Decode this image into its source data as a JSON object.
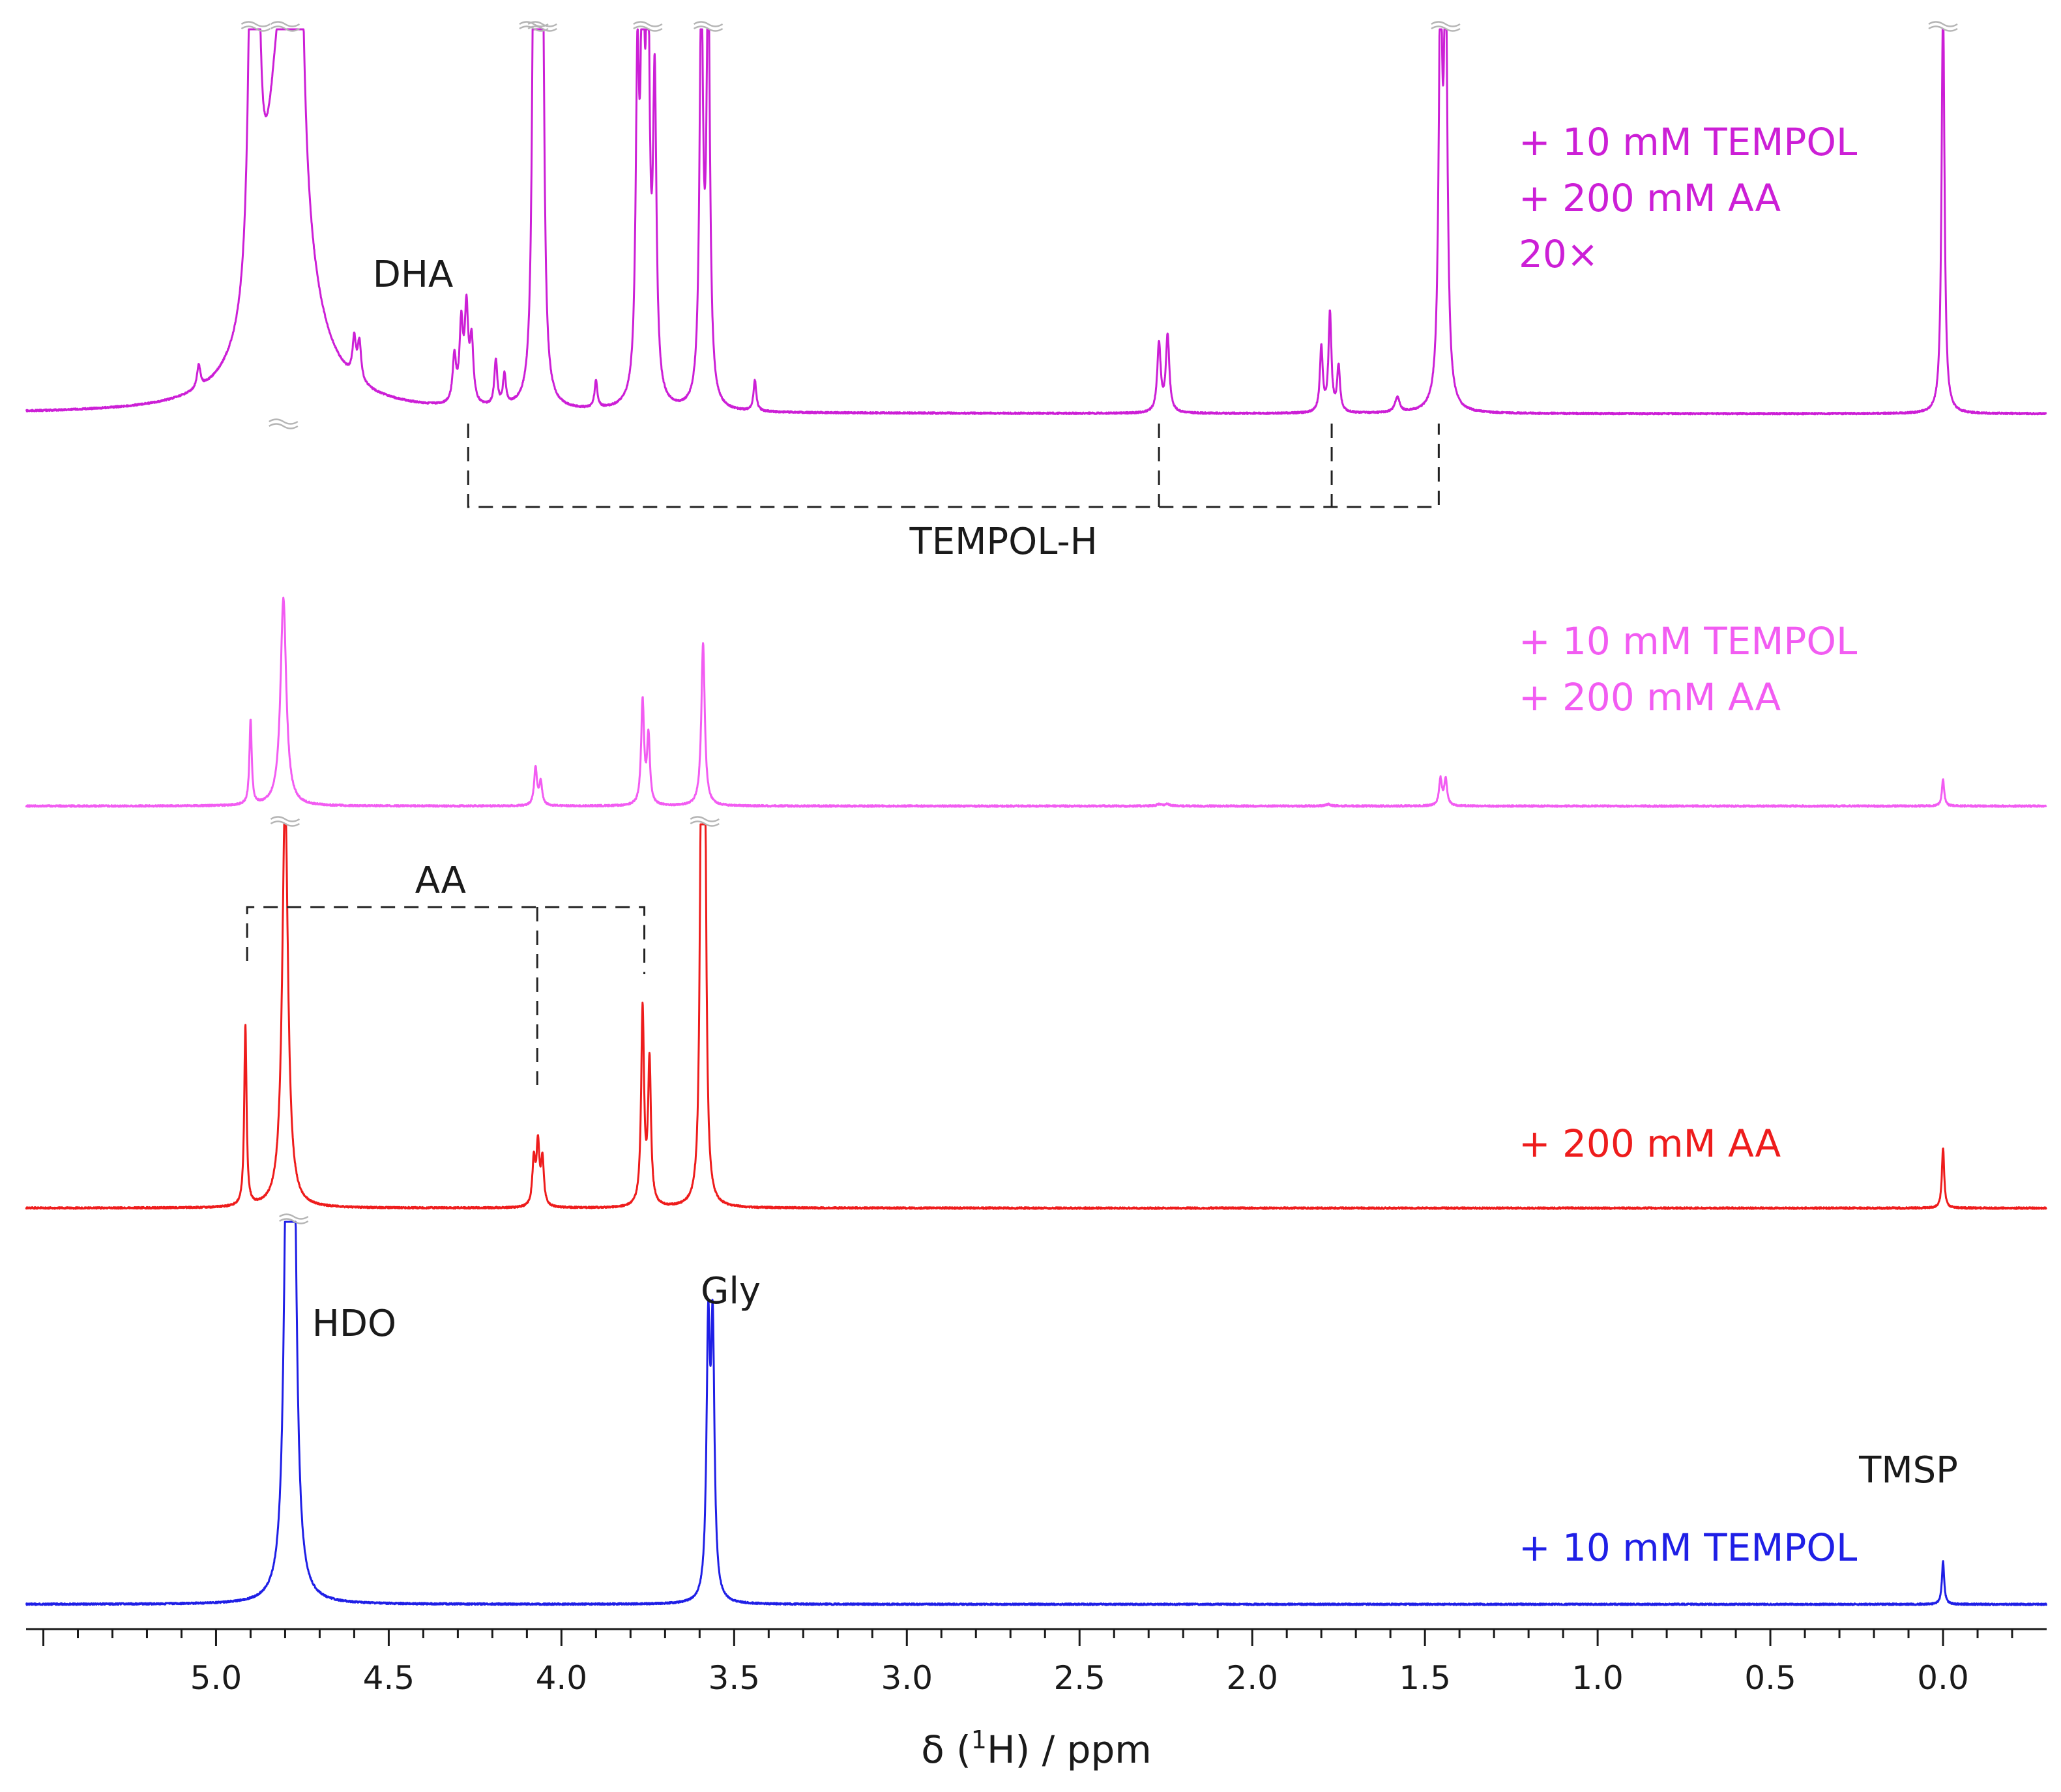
{
  "chart_data": {
    "type": "line",
    "title": "",
    "xlabel": "δ (¹H) / ppm",
    "xlabel_parts": {
      "prefix": "δ (",
      "sup": "1",
      "suffix": "H) / ppm"
    },
    "xlim": [
      5.55,
      -0.3
    ],
    "x_direction": "reversed",
    "grid": false,
    "xticks": [
      {
        "value": 5.0,
        "label": "5.0"
      },
      {
        "value": 4.5,
        "label": "4.5"
      },
      {
        "value": 4.0,
        "label": "4.0"
      },
      {
        "value": 3.5,
        "label": "3.5"
      },
      {
        "value": 3.0,
        "label": "3.0"
      },
      {
        "value": 2.5,
        "label": "2.5"
      },
      {
        "value": 2.0,
        "label": "2.0"
      },
      {
        "value": 1.5,
        "label": "1.5"
      },
      {
        "value": 1.0,
        "label": "1.0"
      },
      {
        "value": 0.5,
        "label": "0.5"
      },
      {
        "value": 0.0,
        "label": "0.0"
      }
    ],
    "series": [
      {
        "name": "+ 10 mM TEMPOL",
        "color": "#1f1fe6",
        "legend": [
          "+ 10 mM TEMPOL"
        ],
        "peaks": [
          {
            "ppm": 4.795,
            "height": 1.1,
            "width": 0.01,
            "truncated": true
          },
          {
            "ppm": 4.775,
            "height": 1.1,
            "width": 0.01,
            "truncated": true
          },
          {
            "ppm": 3.575,
            "height": 0.66,
            "width": 0.006
          },
          {
            "ppm": 3.562,
            "height": 0.66,
            "width": 0.006
          },
          {
            "ppm": 0.0,
            "height": 0.11,
            "width": 0.004
          }
        ]
      },
      {
        "name": "+ 200 mM AA",
        "color": "#ee1c1c",
        "legend": [
          "+ 200 mM AA"
        ],
        "peaks": [
          {
            "ppm": 4.915,
            "height": 0.48,
            "width": 0.004
          },
          {
            "ppm": 4.8,
            "height": 1.1,
            "width": 0.01,
            "truncated": true
          },
          {
            "ppm": 4.08,
            "height": 0.12,
            "width": 0.005
          },
          {
            "ppm": 4.068,
            "height": 0.16,
            "width": 0.005
          },
          {
            "ppm": 4.055,
            "height": 0.12,
            "width": 0.005
          },
          {
            "ppm": 3.765,
            "height": 0.52,
            "width": 0.005
          },
          {
            "ppm": 3.745,
            "height": 0.38,
            "width": 0.005
          },
          {
            "ppm": 3.595,
            "height": 1.1,
            "width": 0.005,
            "truncated": true
          },
          {
            "ppm": 3.585,
            "height": 1.1,
            "width": 0.005,
            "truncated": true
          },
          {
            "ppm": 0.0,
            "height": 0.16,
            "width": 0.004
          }
        ]
      },
      {
        "name": "+ 10 mM TEMPOL + 200 mM AA",
        "color": "#f25cf2",
        "legend": [
          "+ 10 mM TEMPOL",
          "+ 200 mM AA"
        ],
        "peaks": [
          {
            "ppm": 4.9,
            "height": 0.45,
            "width": 0.004
          },
          {
            "ppm": 4.805,
            "height": 1.1,
            "width": 0.01,
            "truncated": true
          },
          {
            "ppm": 4.075,
            "height": 0.2,
            "width": 0.005
          },
          {
            "ppm": 4.06,
            "height": 0.12,
            "width": 0.005
          },
          {
            "ppm": 3.765,
            "height": 0.55,
            "width": 0.005
          },
          {
            "ppm": 3.748,
            "height": 0.36,
            "width": 0.005
          },
          {
            "ppm": 3.59,
            "height": 0.86,
            "width": 0.006
          },
          {
            "ppm": 2.27,
            "height": 0.01,
            "width": 0.008
          },
          {
            "ppm": 2.245,
            "height": 0.01,
            "width": 0.008
          },
          {
            "ppm": 1.78,
            "height": 0.01,
            "width": 0.008
          },
          {
            "ppm": 1.455,
            "height": 0.14,
            "width": 0.005
          },
          {
            "ppm": 1.44,
            "height": 0.14,
            "width": 0.005
          },
          {
            "ppm": 0.0,
            "height": 0.14,
            "width": 0.004
          }
        ]
      },
      {
        "name": "+ 10 mM TEMPOL + 200 mM AA 20×",
        "color": "#cc1fd6",
        "legend": [
          "+ 10 mM TEMPOL",
          "+ 200 mM AA",
          "20×"
        ],
        "peaks": [
          {
            "ppm": 5.05,
            "height": 0.06,
            "width": 0.006
          },
          {
            "ppm": 4.895,
            "height": 1.1,
            "width": 0.01,
            "truncated": true
          },
          {
            "ppm": 4.885,
            "height": 1.1,
            "width": 0.01,
            "truncated": true
          },
          {
            "ppm": 4.8,
            "height": 1.1,
            "width": 0.06,
            "truncated": true
          },
          {
            "ppm": 4.755,
            "height": 0.6,
            "width": 0.012
          },
          {
            "ppm": 4.6,
            "height": 0.1,
            "width": 0.006
          },
          {
            "ppm": 4.585,
            "height": 0.1,
            "width": 0.006
          },
          {
            "ppm": 4.31,
            "height": 0.12,
            "width": 0.006
          },
          {
            "ppm": 4.29,
            "height": 0.2,
            "width": 0.006
          },
          {
            "ppm": 4.275,
            "height": 0.24,
            "width": 0.006
          },
          {
            "ppm": 4.26,
            "height": 0.16,
            "width": 0.006
          },
          {
            "ppm": 4.19,
            "height": 0.12,
            "width": 0.005
          },
          {
            "ppm": 4.165,
            "height": 0.08,
            "width": 0.005
          },
          {
            "ppm": 4.08,
            "height": 1.1,
            "width": 0.006,
            "truncated": true
          },
          {
            "ppm": 4.068,
            "height": 1.1,
            "width": 0.006,
            "truncated": true
          },
          {
            "ppm": 4.055,
            "height": 1.1,
            "width": 0.006,
            "truncated": true
          },
          {
            "ppm": 3.9,
            "height": 0.07,
            "width": 0.005
          },
          {
            "ppm": 3.78,
            "height": 0.8,
            "width": 0.006
          },
          {
            "ppm": 3.765,
            "height": 1.1,
            "width": 0.006,
            "truncated": true
          },
          {
            "ppm": 3.75,
            "height": 1.1,
            "width": 0.006,
            "truncated": true
          },
          {
            "ppm": 3.73,
            "height": 0.8,
            "width": 0.006
          },
          {
            "ppm": 3.595,
            "height": 1.1,
            "width": 0.006,
            "truncated": true
          },
          {
            "ppm": 3.575,
            "height": 1.1,
            "width": 0.006,
            "truncated": true
          },
          {
            "ppm": 3.44,
            "height": 0.08,
            "width": 0.005
          },
          {
            "ppm": 2.27,
            "height": 0.18,
            "width": 0.006
          },
          {
            "ppm": 2.245,
            "height": 0.2,
            "width": 0.006
          },
          {
            "ppm": 1.8,
            "height": 0.17,
            "width": 0.005
          },
          {
            "ppm": 1.775,
            "height": 0.26,
            "width": 0.005
          },
          {
            "ppm": 1.75,
            "height": 0.12,
            "width": 0.005
          },
          {
            "ppm": 1.58,
            "height": 0.04,
            "width": 0.008
          },
          {
            "ppm": 1.455,
            "height": 1.1,
            "width": 0.006,
            "truncated": true
          },
          {
            "ppm": 1.44,
            "height": 1.1,
            "width": 0.006,
            "truncated": true
          },
          {
            "ppm": 0.0,
            "height": 1.1,
            "width": 0.005,
            "truncated": true
          }
        ]
      }
    ],
    "annotations": [
      {
        "text": "DHA",
        "ppm": 4.43
      },
      {
        "text": "TEMPOL-H",
        "ppm": 2.72,
        "bracket_ppm": [
          4.27,
          2.27,
          1.77,
          1.46
        ]
      },
      {
        "text": "AA",
        "ppm": 4.35,
        "bracket_ppm": [
          4.91,
          4.07,
          3.76
        ]
      },
      {
        "text": "HDO",
        "ppm": 4.6
      },
      {
        "text": "Gly",
        "ppm": 3.51
      },
      {
        "text": "TMSP",
        "ppm": 0.1
      }
    ]
  }
}
